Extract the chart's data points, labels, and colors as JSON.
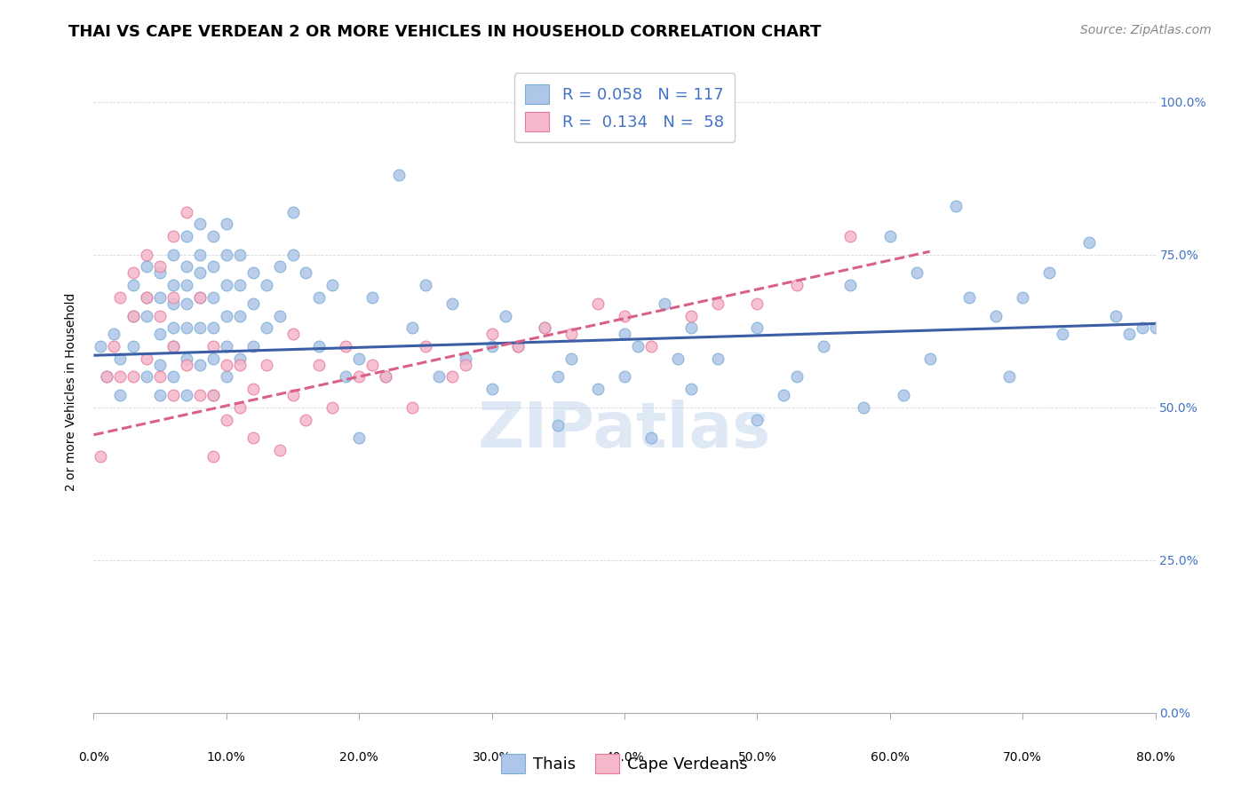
{
  "title": "THAI VS CAPE VERDEAN 2 OR MORE VEHICLES IN HOUSEHOLD CORRELATION CHART",
  "source": "Source: ZipAtlas.com",
  "ylabel": "2 or more Vehicles in Household",
  "xlim": [
    0.0,
    0.8
  ],
  "ylim": [
    0.0,
    1.05
  ],
  "watermark": "ZIPatlas",
  "thai_color": "#aec6e8",
  "cape_color": "#f5b8cb",
  "thai_edge": "#7aadd4",
  "cape_edge": "#e87a9a",
  "trend_thai_color": "#3b5ea6",
  "trend_cape_color": "#d96087",
  "legend_thai_label": "R = 0.058   N = 117",
  "legend_cape_label": "R =  0.134   N =  58",
  "bottom_thai_label": "Thais",
  "bottom_cape_label": "Cape Verdeans",
  "right_tick_color": "#4472c4",
  "title_fontsize": 13,
  "source_fontsize": 10,
  "label_fontsize": 10,
  "tick_fontsize": 10,
  "legend_fontsize": 13,
  "marker_size": 85,
  "trend_linewidth": 2.2,
  "thai_x": [
    0.005,
    0.01,
    0.015,
    0.02,
    0.02,
    0.03,
    0.03,
    0.03,
    0.04,
    0.04,
    0.04,
    0.04,
    0.05,
    0.05,
    0.05,
    0.05,
    0.05,
    0.06,
    0.06,
    0.06,
    0.06,
    0.06,
    0.06,
    0.07,
    0.07,
    0.07,
    0.07,
    0.07,
    0.07,
    0.07,
    0.08,
    0.08,
    0.08,
    0.08,
    0.08,
    0.08,
    0.09,
    0.09,
    0.09,
    0.09,
    0.09,
    0.09,
    0.1,
    0.1,
    0.1,
    0.1,
    0.1,
    0.1,
    0.11,
    0.11,
    0.11,
    0.11,
    0.12,
    0.12,
    0.12,
    0.13,
    0.13,
    0.14,
    0.14,
    0.15,
    0.15,
    0.16,
    0.17,
    0.17,
    0.18,
    0.19,
    0.2,
    0.2,
    0.21,
    0.22,
    0.23,
    0.24,
    0.25,
    0.26,
    0.27,
    0.28,
    0.3,
    0.31,
    0.32,
    0.34,
    0.35,
    0.36,
    0.38,
    0.4,
    0.41,
    0.42,
    0.43,
    0.44,
    0.45,
    0.47,
    0.5,
    0.5,
    0.53,
    0.55,
    0.57,
    0.6,
    0.62,
    0.63,
    0.65,
    0.66,
    0.68,
    0.69,
    0.7,
    0.72,
    0.73,
    0.75,
    0.77,
    0.78,
    0.79,
    0.8,
    0.3,
    0.35,
    0.4,
    0.45,
    0.52,
    0.58,
    0.61
  ],
  "thai_y": [
    0.6,
    0.55,
    0.62,
    0.58,
    0.52,
    0.65,
    0.7,
    0.6,
    0.68,
    0.73,
    0.65,
    0.55,
    0.72,
    0.68,
    0.62,
    0.57,
    0.52,
    0.75,
    0.7,
    0.67,
    0.63,
    0.6,
    0.55,
    0.78,
    0.73,
    0.7,
    0.67,
    0.63,
    0.58,
    0.52,
    0.8,
    0.75,
    0.72,
    0.68,
    0.63,
    0.57,
    0.78,
    0.73,
    0.68,
    0.63,
    0.58,
    0.52,
    0.8,
    0.75,
    0.7,
    0.65,
    0.6,
    0.55,
    0.75,
    0.7,
    0.65,
    0.58,
    0.72,
    0.67,
    0.6,
    0.7,
    0.63,
    0.73,
    0.65,
    0.82,
    0.75,
    0.72,
    0.68,
    0.6,
    0.7,
    0.55,
    0.58,
    0.45,
    0.68,
    0.55,
    0.88,
    0.63,
    0.7,
    0.55,
    0.67,
    0.58,
    0.6,
    0.65,
    0.6,
    0.63,
    0.55,
    0.58,
    0.53,
    0.62,
    0.6,
    0.45,
    0.67,
    0.58,
    0.63,
    0.58,
    0.63,
    0.48,
    0.55,
    0.6,
    0.7,
    0.78,
    0.72,
    0.58,
    0.83,
    0.68,
    0.65,
    0.55,
    0.68,
    0.72,
    0.62,
    0.77,
    0.65,
    0.62,
    0.63,
    0.63,
    0.53,
    0.47,
    0.55,
    0.53,
    0.52,
    0.5,
    0.52
  ],
  "cape_x": [
    0.005,
    0.01,
    0.015,
    0.02,
    0.02,
    0.03,
    0.03,
    0.03,
    0.04,
    0.04,
    0.04,
    0.05,
    0.05,
    0.05,
    0.06,
    0.06,
    0.06,
    0.06,
    0.07,
    0.07,
    0.08,
    0.08,
    0.09,
    0.09,
    0.09,
    0.1,
    0.1,
    0.11,
    0.11,
    0.12,
    0.12,
    0.13,
    0.14,
    0.15,
    0.15,
    0.16,
    0.17,
    0.18,
    0.19,
    0.2,
    0.21,
    0.22,
    0.24,
    0.25,
    0.27,
    0.28,
    0.3,
    0.32,
    0.34,
    0.36,
    0.38,
    0.4,
    0.42,
    0.45,
    0.47,
    0.5,
    0.53,
    0.57
  ],
  "cape_y": [
    0.42,
    0.55,
    0.6,
    0.68,
    0.55,
    0.72,
    0.65,
    0.55,
    0.75,
    0.68,
    0.58,
    0.73,
    0.65,
    0.55,
    0.78,
    0.68,
    0.6,
    0.52,
    0.82,
    0.57,
    0.68,
    0.52,
    0.6,
    0.52,
    0.42,
    0.57,
    0.48,
    0.57,
    0.5,
    0.53,
    0.45,
    0.57,
    0.43,
    0.62,
    0.52,
    0.48,
    0.57,
    0.5,
    0.6,
    0.55,
    0.57,
    0.55,
    0.5,
    0.6,
    0.55,
    0.57,
    0.62,
    0.6,
    0.63,
    0.62,
    0.67,
    0.65,
    0.6,
    0.65,
    0.67,
    0.67,
    0.7,
    0.78
  ],
  "thai_trend_x0": 0.0,
  "thai_trend_y0": 0.585,
  "thai_trend_x1": 0.8,
  "thai_trend_y1": 0.637,
  "cape_trend_x0": 0.0,
  "cape_trend_y0": 0.455,
  "cape_trend_x1": 0.63,
  "cape_trend_y1": 0.755
}
